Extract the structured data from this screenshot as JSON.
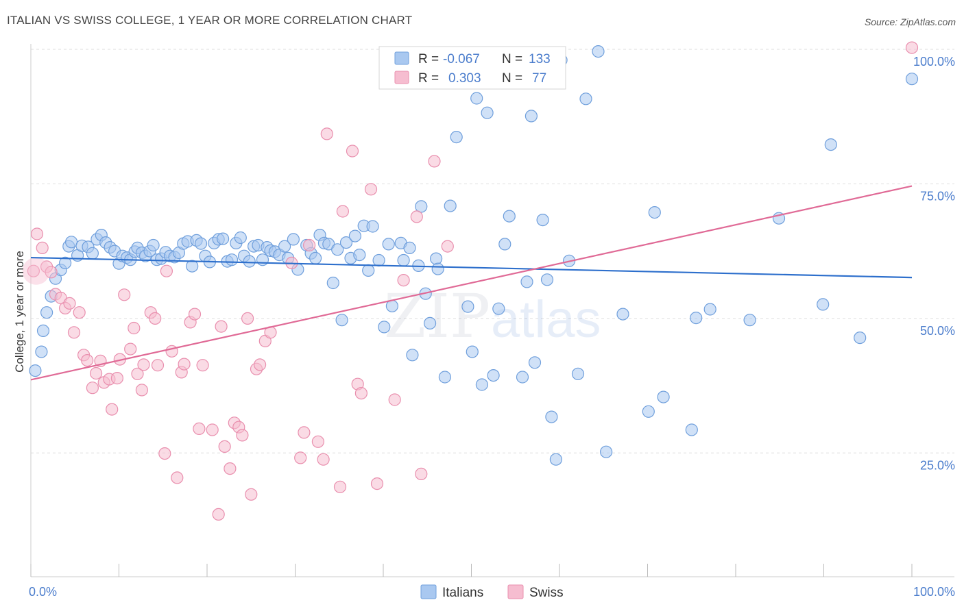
{
  "title": "ITALIAN VS SWISS COLLEGE, 1 YEAR OR MORE CORRELATION CHART",
  "source": "Source: ZipAtlas.com",
  "watermark": {
    "zip": "ZIP",
    "atlas": "atlas"
  },
  "colors": {
    "italians_fill": "#a9c8f0",
    "italians_stroke": "#6f9fdc",
    "italians_line": "#2d6fcc",
    "swiss_fill": "#f6bdd0",
    "swiss_stroke": "#e98fae",
    "swiss_line": "#e06a96",
    "axis_text": "#4a7ccc",
    "grid": "#dddddd"
  },
  "legend": {
    "rows": [
      {
        "r_label": "R =",
        "r_value": "-0.067",
        "n_label": "N =",
        "n_value": "133"
      },
      {
        "r_label": "R =",
        "r_value": "0.303",
        "n_label": "N =",
        "n_value": "77"
      }
    ]
  },
  "chart_data": {
    "type": "scatter",
    "title": "ITALIAN VS SWISS COLLEGE, 1 YEAR OR MORE CORRELATION CHART",
    "xlabel": "",
    "ylabel": "College, 1 year or more",
    "xlim": [
      0,
      100
    ],
    "ylim": [
      2,
      100
    ],
    "x_tick_labels": [
      "0.0%",
      "100.0%"
    ],
    "y_ticks": [
      25,
      50,
      75,
      100
    ],
    "y_tick_labels": [
      "25.0%",
      "50.0%",
      "75.0%",
      "100.0%"
    ],
    "grid": true,
    "legend_position": "bottom",
    "series": [
      {
        "name": "Italians",
        "trend": [
          [
            0,
            61.3
          ],
          [
            100,
            57.6
          ]
        ],
        "points": [
          [
            0.5,
            40.3
          ],
          [
            1.2,
            43.8
          ],
          [
            1.4,
            47.7
          ],
          [
            1.8,
            51.1
          ],
          [
            2.3,
            54.1
          ],
          [
            2.8,
            57.4
          ],
          [
            3.4,
            59.0
          ],
          [
            3.9,
            60.3
          ],
          [
            4.3,
            63.4
          ],
          [
            4.6,
            64.2
          ],
          [
            5.3,
            61.7
          ],
          [
            5.8,
            63.5
          ],
          [
            6.5,
            63.3
          ],
          [
            7.0,
            62.1
          ],
          [
            7.5,
            64.7
          ],
          [
            8.0,
            65.5
          ],
          [
            8.5,
            64.1
          ],
          [
            9.0,
            63.2
          ],
          [
            9.5,
            62.5
          ],
          [
            10.0,
            60.2
          ],
          [
            10.4,
            61.6
          ],
          [
            10.9,
            61.3
          ],
          [
            11.3,
            60.9
          ],
          [
            11.8,
            62.4
          ],
          [
            12.1,
            63.1
          ],
          [
            12.6,
            62.2
          ],
          [
            13.0,
            61.6
          ],
          [
            13.5,
            62.5
          ],
          [
            13.9,
            63.6
          ],
          [
            14.3,
            60.9
          ],
          [
            14.8,
            61.1
          ],
          [
            15.3,
            62.3
          ],
          [
            15.8,
            61.6
          ],
          [
            16.3,
            61.4
          ],
          [
            16.8,
            62.2
          ],
          [
            17.3,
            63.9
          ],
          [
            17.8,
            64.3
          ],
          [
            18.3,
            59.7
          ],
          [
            18.8,
            64.5
          ],
          [
            19.3,
            63.9
          ],
          [
            19.8,
            61.6
          ],
          [
            20.3,
            60.5
          ],
          [
            20.8,
            64.0
          ],
          [
            21.3,
            64.7
          ],
          [
            21.8,
            64.8
          ],
          [
            22.3,
            60.6
          ],
          [
            22.8,
            60.9
          ],
          [
            23.3,
            64.0
          ],
          [
            23.8,
            65.0
          ],
          [
            24.2,
            61.6
          ],
          [
            24.8,
            60.6
          ],
          [
            25.3,
            63.4
          ],
          [
            25.8,
            63.6
          ],
          [
            26.3,
            60.9
          ],
          [
            26.8,
            63.2
          ],
          [
            27.2,
            62.6
          ],
          [
            27.7,
            62.4
          ],
          [
            28.2,
            61.8
          ],
          [
            28.8,
            63.4
          ],
          [
            29.2,
            61.2
          ],
          [
            29.8,
            64.7
          ],
          [
            30.3,
            59.1
          ],
          [
            31.3,
            63.6
          ],
          [
            31.8,
            62.1
          ],
          [
            32.3,
            61.2
          ],
          [
            32.8,
            65.5
          ],
          [
            33.3,
            64.0
          ],
          [
            33.8,
            63.8
          ],
          [
            34.3,
            56.6
          ],
          [
            34.8,
            62.8
          ],
          [
            35.3,
            49.7
          ],
          [
            35.8,
            64.1
          ],
          [
            36.3,
            61.2
          ],
          [
            36.8,
            65.3
          ],
          [
            37.3,
            61.8
          ],
          [
            37.8,
            67.2
          ],
          [
            38.3,
            58.9
          ],
          [
            38.8,
            67.1
          ],
          [
            39.5,
            60.8
          ],
          [
            40.1,
            48.4
          ],
          [
            40.6,
            63.8
          ],
          [
            41.0,
            52.3
          ],
          [
            42.0,
            64.0
          ],
          [
            42.3,
            60.8
          ],
          [
            43.0,
            63.1
          ],
          [
            43.3,
            43.2
          ],
          [
            44.0,
            59.8
          ],
          [
            44.3,
            70.8
          ],
          [
            44.8,
            54.6
          ],
          [
            45.3,
            49.1
          ],
          [
            46.0,
            61.1
          ],
          [
            46.2,
            59.2
          ],
          [
            47.0,
            39.1
          ],
          [
            47.6,
            70.9
          ],
          [
            48.3,
            83.7
          ],
          [
            49.6,
            52.2
          ],
          [
            50.1,
            43.8
          ],
          [
            50.6,
            90.9
          ],
          [
            51.2,
            37.7
          ],
          [
            51.8,
            88.2
          ],
          [
            52.5,
            39.4
          ],
          [
            53.1,
            51.8
          ],
          [
            53.8,
            63.8
          ],
          [
            54.3,
            69.0
          ],
          [
            55.6,
            96.7
          ],
          [
            55.8,
            39.1
          ],
          [
            56.3,
            56.8
          ],
          [
            56.8,
            87.6
          ],
          [
            57.2,
            41.8
          ],
          [
            58.1,
            68.3
          ],
          [
            58.6,
            57.2
          ],
          [
            59.1,
            31.7
          ],
          [
            59.6,
            23.8
          ],
          [
            60.2,
            98.0
          ],
          [
            61.1,
            60.7
          ],
          [
            62.1,
            39.7
          ],
          [
            63.0,
            90.8
          ],
          [
            64.4,
            99.6
          ],
          [
            65.3,
            25.2
          ],
          [
            67.2,
            50.8
          ],
          [
            70.1,
            32.7
          ],
          [
            70.8,
            69.7
          ],
          [
            71.8,
            35.4
          ],
          [
            75.0,
            29.3
          ],
          [
            75.5,
            50.1
          ],
          [
            77.1,
            51.7
          ],
          [
            81.6,
            49.7
          ],
          [
            84.9,
            68.6
          ],
          [
            89.9,
            52.6
          ],
          [
            90.8,
            82.3
          ],
          [
            94.1,
            46.4
          ],
          [
            100.0,
            94.5
          ]
        ]
      },
      {
        "name": "Swiss",
        "trend": [
          [
            0,
            38.6
          ],
          [
            100,
            74.6
          ]
        ],
        "points": [
          [
            0.3,
            58.8
          ],
          [
            0.7,
            65.7
          ],
          [
            1.3,
            63.1
          ],
          [
            1.8,
            59.6
          ],
          [
            2.3,
            58.6
          ],
          [
            2.8,
            54.5
          ],
          [
            3.4,
            53.8
          ],
          [
            3.9,
            51.9
          ],
          [
            4.4,
            52.8
          ],
          [
            4.9,
            47.4
          ],
          [
            5.5,
            51.1
          ],
          [
            6.0,
            43.2
          ],
          [
            6.4,
            42.2
          ],
          [
            7.0,
            37.1
          ],
          [
            7.4,
            39.8
          ],
          [
            7.9,
            42.1
          ],
          [
            8.3,
            38.1
          ],
          [
            8.9,
            38.7
          ],
          [
            9.2,
            33.1
          ],
          [
            9.8,
            38.9
          ],
          [
            10.1,
            42.4
          ],
          [
            10.6,
            54.4
          ],
          [
            11.3,
            44.3
          ],
          [
            11.7,
            48.2
          ],
          [
            12.1,
            39.7
          ],
          [
            12.6,
            36.7
          ],
          [
            12.8,
            41.4
          ],
          [
            13.6,
            51.1
          ],
          [
            14.1,
            50.0
          ],
          [
            14.4,
            41.3
          ],
          [
            15.2,
            24.9
          ],
          [
            15.4,
            58.8
          ],
          [
            16.0,
            43.9
          ],
          [
            16.6,
            20.4
          ],
          [
            17.1,
            40.0
          ],
          [
            17.4,
            41.5
          ],
          [
            18.1,
            49.3
          ],
          [
            18.6,
            50.8
          ],
          [
            19.1,
            29.5
          ],
          [
            19.5,
            41.3
          ],
          [
            20.6,
            29.3
          ],
          [
            21.3,
            13.6
          ],
          [
            21.6,
            48.5
          ],
          [
            22.0,
            26.2
          ],
          [
            22.6,
            22.1
          ],
          [
            23.1,
            30.6
          ],
          [
            23.6,
            29.8
          ],
          [
            24.0,
            28.3
          ],
          [
            24.6,
            50.0
          ],
          [
            25.0,
            17.3
          ],
          [
            25.6,
            40.6
          ],
          [
            26.0,
            41.4
          ],
          [
            26.6,
            45.8
          ],
          [
            27.2,
            47.4
          ],
          [
            29.6,
            60.3
          ],
          [
            30.6,
            24.1
          ],
          [
            31.0,
            28.8
          ],
          [
            31.6,
            63.6
          ],
          [
            32.6,
            27.1
          ],
          [
            33.2,
            23.8
          ],
          [
            33.6,
            84.3
          ],
          [
            35.1,
            18.7
          ],
          [
            35.4,
            69.9
          ],
          [
            36.5,
            81.1
          ],
          [
            37.1,
            37.8
          ],
          [
            37.5,
            36.1
          ],
          [
            38.6,
            74.0
          ],
          [
            39.3,
            19.3
          ],
          [
            41.3,
            34.9
          ],
          [
            42.3,
            57.1
          ],
          [
            43.8,
            68.9
          ],
          [
            44.3,
            21.1
          ],
          [
            45.8,
            79.2
          ],
          [
            47.3,
            63.4
          ],
          [
            100.0,
            100.3
          ]
        ]
      }
    ]
  }
}
